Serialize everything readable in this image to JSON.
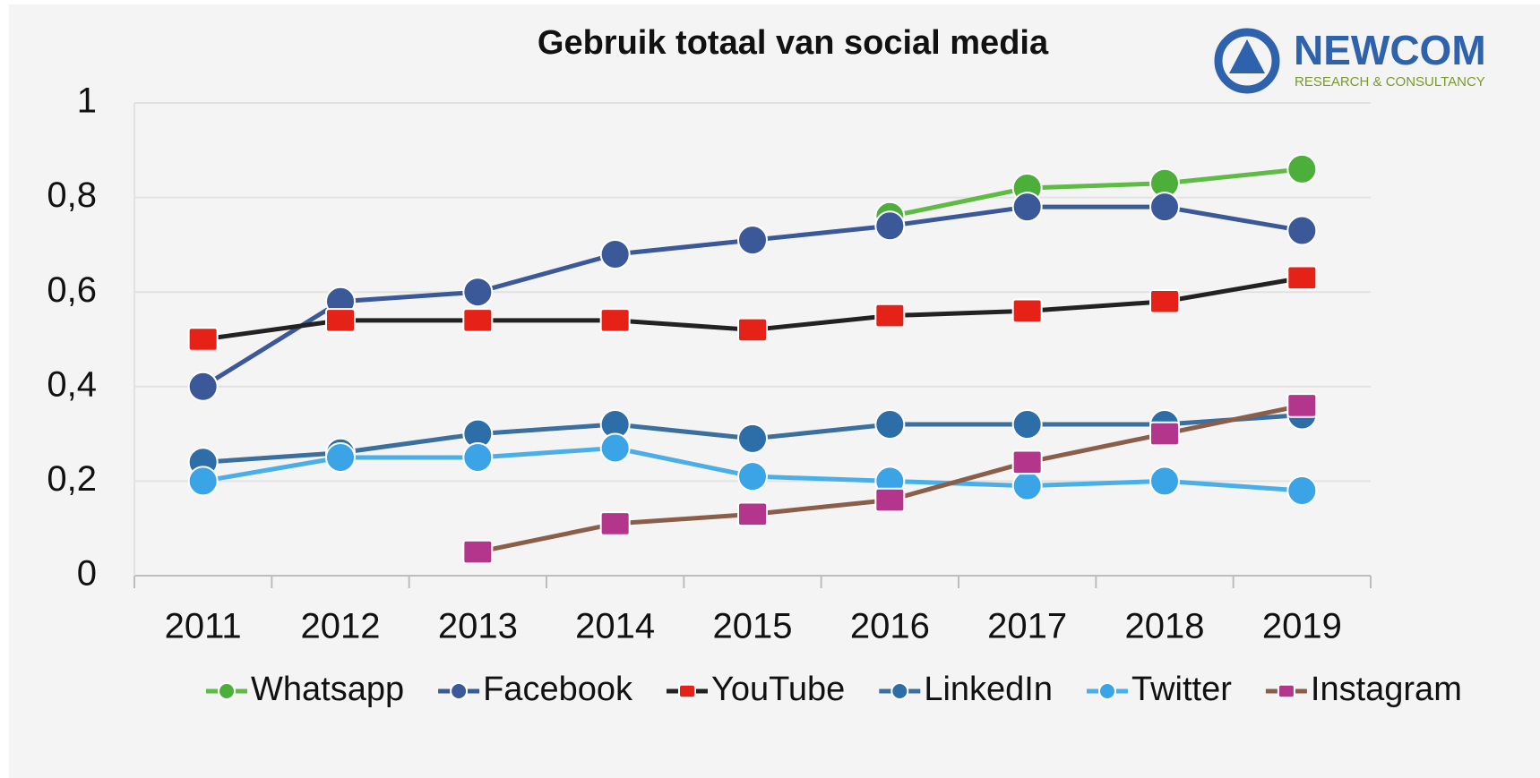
{
  "chart_data": {
    "type": "line",
    "title": "Gebruik totaal van social media",
    "logo": {
      "name": "NEWCOM",
      "tagline": "RESEARCH & CONSULTANCY"
    },
    "categories": [
      "2011",
      "2012",
      "2013",
      "2014",
      "2015",
      "2016",
      "2017",
      "2018",
      "2019"
    ],
    "ylim": [
      0,
      1
    ],
    "yticks": [
      0,
      {
        "value": 0.2,
        "label": "0,2"
      },
      {
        "value": 0.4,
        "label": "0,4"
      },
      {
        "value": 0.6,
        "label": "0,6"
      },
      {
        "value": 0.8,
        "label": "0,8"
      },
      1
    ],
    "grid": true,
    "legend": "bottom",
    "series": [
      {
        "name": "Whatsapp",
        "color": "#5dbb46",
        "marker_color": "#4caf3a",
        "marker": "circle",
        "values": [
          null,
          null,
          null,
          null,
          null,
          0.76,
          0.82,
          0.83,
          0.86
        ]
      },
      {
        "name": "Facebook",
        "color": "#3b5998",
        "marker_color": "#3b5998",
        "marker": "circle",
        "values": [
          0.4,
          0.58,
          0.6,
          0.68,
          0.71,
          0.74,
          0.78,
          0.78,
          0.73
        ]
      },
      {
        "name": "YouTube",
        "color": "#222222",
        "marker_color": "#e62117",
        "marker": "square",
        "values": [
          0.5,
          0.54,
          0.54,
          0.54,
          0.52,
          0.55,
          0.56,
          0.58,
          0.63
        ]
      },
      {
        "name": "LinkedIn",
        "color": "#3a6fa0",
        "marker_color": "#2d6ea8",
        "marker": "circle",
        "values": [
          0.24,
          0.26,
          0.3,
          0.32,
          0.29,
          0.32,
          0.32,
          0.32,
          0.34
        ]
      },
      {
        "name": "Twitter",
        "color": "#4aaee8",
        "marker_color": "#3aa4e6",
        "marker": "circle",
        "values": [
          0.2,
          0.25,
          0.25,
          0.27,
          0.21,
          0.2,
          0.19,
          0.2,
          0.18
        ]
      },
      {
        "name": "Instagram",
        "color": "#8b5e4a",
        "marker_color": "#b4368c",
        "marker": "square",
        "values": [
          null,
          null,
          0.05,
          0.11,
          0.13,
          0.16,
          0.24,
          0.3,
          0.36
        ]
      }
    ]
  }
}
